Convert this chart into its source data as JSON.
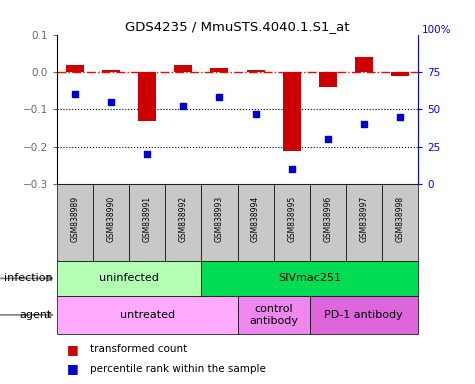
{
  "title": "GDS4235 / MmuSTS.4040.1.S1_at",
  "samples": [
    "GSM838989",
    "GSM838990",
    "GSM838991",
    "GSM838992",
    "GSM838993",
    "GSM838994",
    "GSM838995",
    "GSM838996",
    "GSM838997",
    "GSM838998"
  ],
  "bar_values": [
    0.02,
    0.005,
    -0.13,
    0.02,
    0.01,
    0.005,
    -0.21,
    -0.04,
    0.04,
    -0.01
  ],
  "dot_values": [
    60,
    55,
    20,
    52,
    58,
    47,
    10,
    30,
    40,
    45
  ],
  "bar_color": "#cc0000",
  "dot_color": "#0000cc",
  "ylim_left": [
    -0.3,
    0.1
  ],
  "ylim_right": [
    0,
    100
  ],
  "yticks_left": [
    0.1,
    0.0,
    -0.1,
    -0.2,
    -0.3
  ],
  "yticks_right": [
    75,
    50,
    25,
    0
  ],
  "right_axis_top_label": "100%",
  "dotted_lines": [
    -0.1,
    -0.2
  ],
  "infection_labels": [
    {
      "label": "uninfected",
      "start": 0,
      "end": 4,
      "color": "#b3ffb3"
    },
    {
      "label": "SIVmac251",
      "start": 4,
      "end": 10,
      "color": "#00dd55"
    }
  ],
  "agent_labels": [
    {
      "label": "untreated",
      "start": 0,
      "end": 5,
      "color": "#ffaaff"
    },
    {
      "label": "control\nantibody",
      "start": 5,
      "end": 7,
      "color": "#ee88ee"
    },
    {
      "label": "PD-1 antibody",
      "start": 7,
      "end": 10,
      "color": "#dd66dd"
    }
  ],
  "legend_bar_label": "transformed count",
  "legend_dot_label": "percentile rank within the sample",
  "infection_row_label": "infection",
  "agent_row_label": "agent",
  "sample_cell_color": "#c8c8c8",
  "background_color": "#ffffff"
}
